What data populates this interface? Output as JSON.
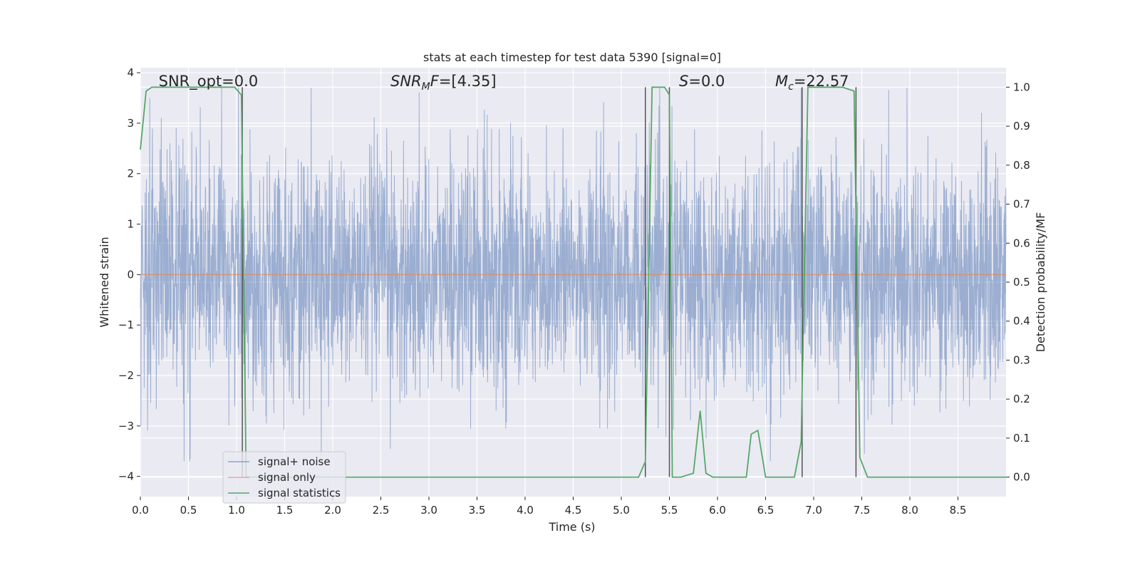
{
  "chart_data": {
    "type": "line",
    "title": "stats at each timestep for test data 5390 [signal=0]",
    "xlabel": "Time (s)",
    "ylabel": "Whitened strain",
    "y2label": "Detection probability/MF",
    "xlim": [
      0.0,
      9.0
    ],
    "ylim": [
      -4.4,
      4.1
    ],
    "y2lim": [
      -0.05,
      1.05
    ],
    "xticks": [
      0.0,
      0.5,
      1.0,
      1.5,
      2.0,
      2.5,
      3.0,
      3.5,
      4.0,
      4.5,
      5.0,
      5.5,
      6.0,
      6.5,
      7.0,
      7.5,
      8.0,
      8.5
    ],
    "xtick_labels": [
      "0.0",
      "0.5",
      "1.0",
      "1.5",
      "2.0",
      "2.5",
      "3.0",
      "3.5",
      "4.0",
      "4.5",
      "5.0",
      "5.5",
      "6.0",
      "6.5",
      "7.0",
      "7.5",
      "8.0",
      "8.5"
    ],
    "yticks": [
      -4,
      -3,
      -2,
      -1,
      0,
      1,
      2,
      3,
      4
    ],
    "ytick_labels": [
      "−4",
      "−3",
      "−2",
      "−1",
      "0",
      "1",
      "2",
      "3",
      "4"
    ],
    "y2ticks": [
      0.0,
      0.1,
      0.2,
      0.3,
      0.4,
      0.5,
      0.6,
      0.7,
      0.8,
      0.9,
      1.0
    ],
    "y2tick_labels": [
      "0.0",
      "0.1",
      "0.2",
      "0.3",
      "0.4",
      "0.5",
      "0.6",
      "0.7",
      "0.8",
      "0.9",
      "1.0"
    ],
    "grid": true,
    "legend_position": "lower-left",
    "series": [
      {
        "name": "signal+ noise",
        "color": "#4c72b0",
        "axis": "left",
        "description_values": "whitened strain noise, approx. range -3.7 to 3.7, 9 s of samples",
        "x_range": [
          0.0,
          9.0
        ]
      },
      {
        "name": "signal only",
        "color": "#dd8452",
        "axis": "left",
        "x": [
          0.0,
          9.0
        ],
        "y": [
          0.0,
          0.0
        ]
      },
      {
        "name": "signal statistics",
        "color": "#55a868",
        "axis": "right",
        "x": [
          0.0,
          0.06,
          0.12,
          0.25,
          0.5,
          0.75,
          0.98,
          1.05,
          1.1,
          1.2,
          2.0,
          3.0,
          4.0,
          5.0,
          5.18,
          5.25,
          5.32,
          5.45,
          5.5,
          5.53,
          5.62,
          5.75,
          5.82,
          5.88,
          5.95,
          6.3,
          6.35,
          6.42,
          6.5,
          6.55,
          6.8,
          6.87,
          6.94,
          7.0,
          7.3,
          7.42,
          7.48,
          7.56,
          7.7,
          9.0
        ],
        "y": [
          0.84,
          0.99,
          1.0,
          1.0,
          1.0,
          1.0,
          1.0,
          0.98,
          0.0,
          0.0,
          0.0,
          0.0,
          0.0,
          0.0,
          0.0,
          0.04,
          1.0,
          1.0,
          0.98,
          0.0,
          0.0,
          0.01,
          0.17,
          0.01,
          0.0,
          0.0,
          0.11,
          0.12,
          0.0,
          0.0,
          0.0,
          0.09,
          1.0,
          1.0,
          1.0,
          0.99,
          0.05,
          0.0,
          0.0,
          0.0
        ]
      }
    ],
    "vertical_lines": [
      1.06,
      5.25,
      5.5,
      6.88,
      7.44
    ],
    "annotations": [
      {
        "text_plain": "SNR_opt=0.0",
        "x": 0.19,
        "italic": false
      },
      {
        "text_main": "SNR",
        "text_sub": "M",
        "text_tail": "F=[4.35]",
        "x": 2.6,
        "italic": true
      },
      {
        "text_main": "S",
        "text_tail": "=0.0",
        "x": 5.6,
        "italic": true
      },
      {
        "text_main": "M",
        "text_sub": "c",
        "text_tail": "=22.57",
        "x": 6.6,
        "italic": true
      }
    ]
  }
}
